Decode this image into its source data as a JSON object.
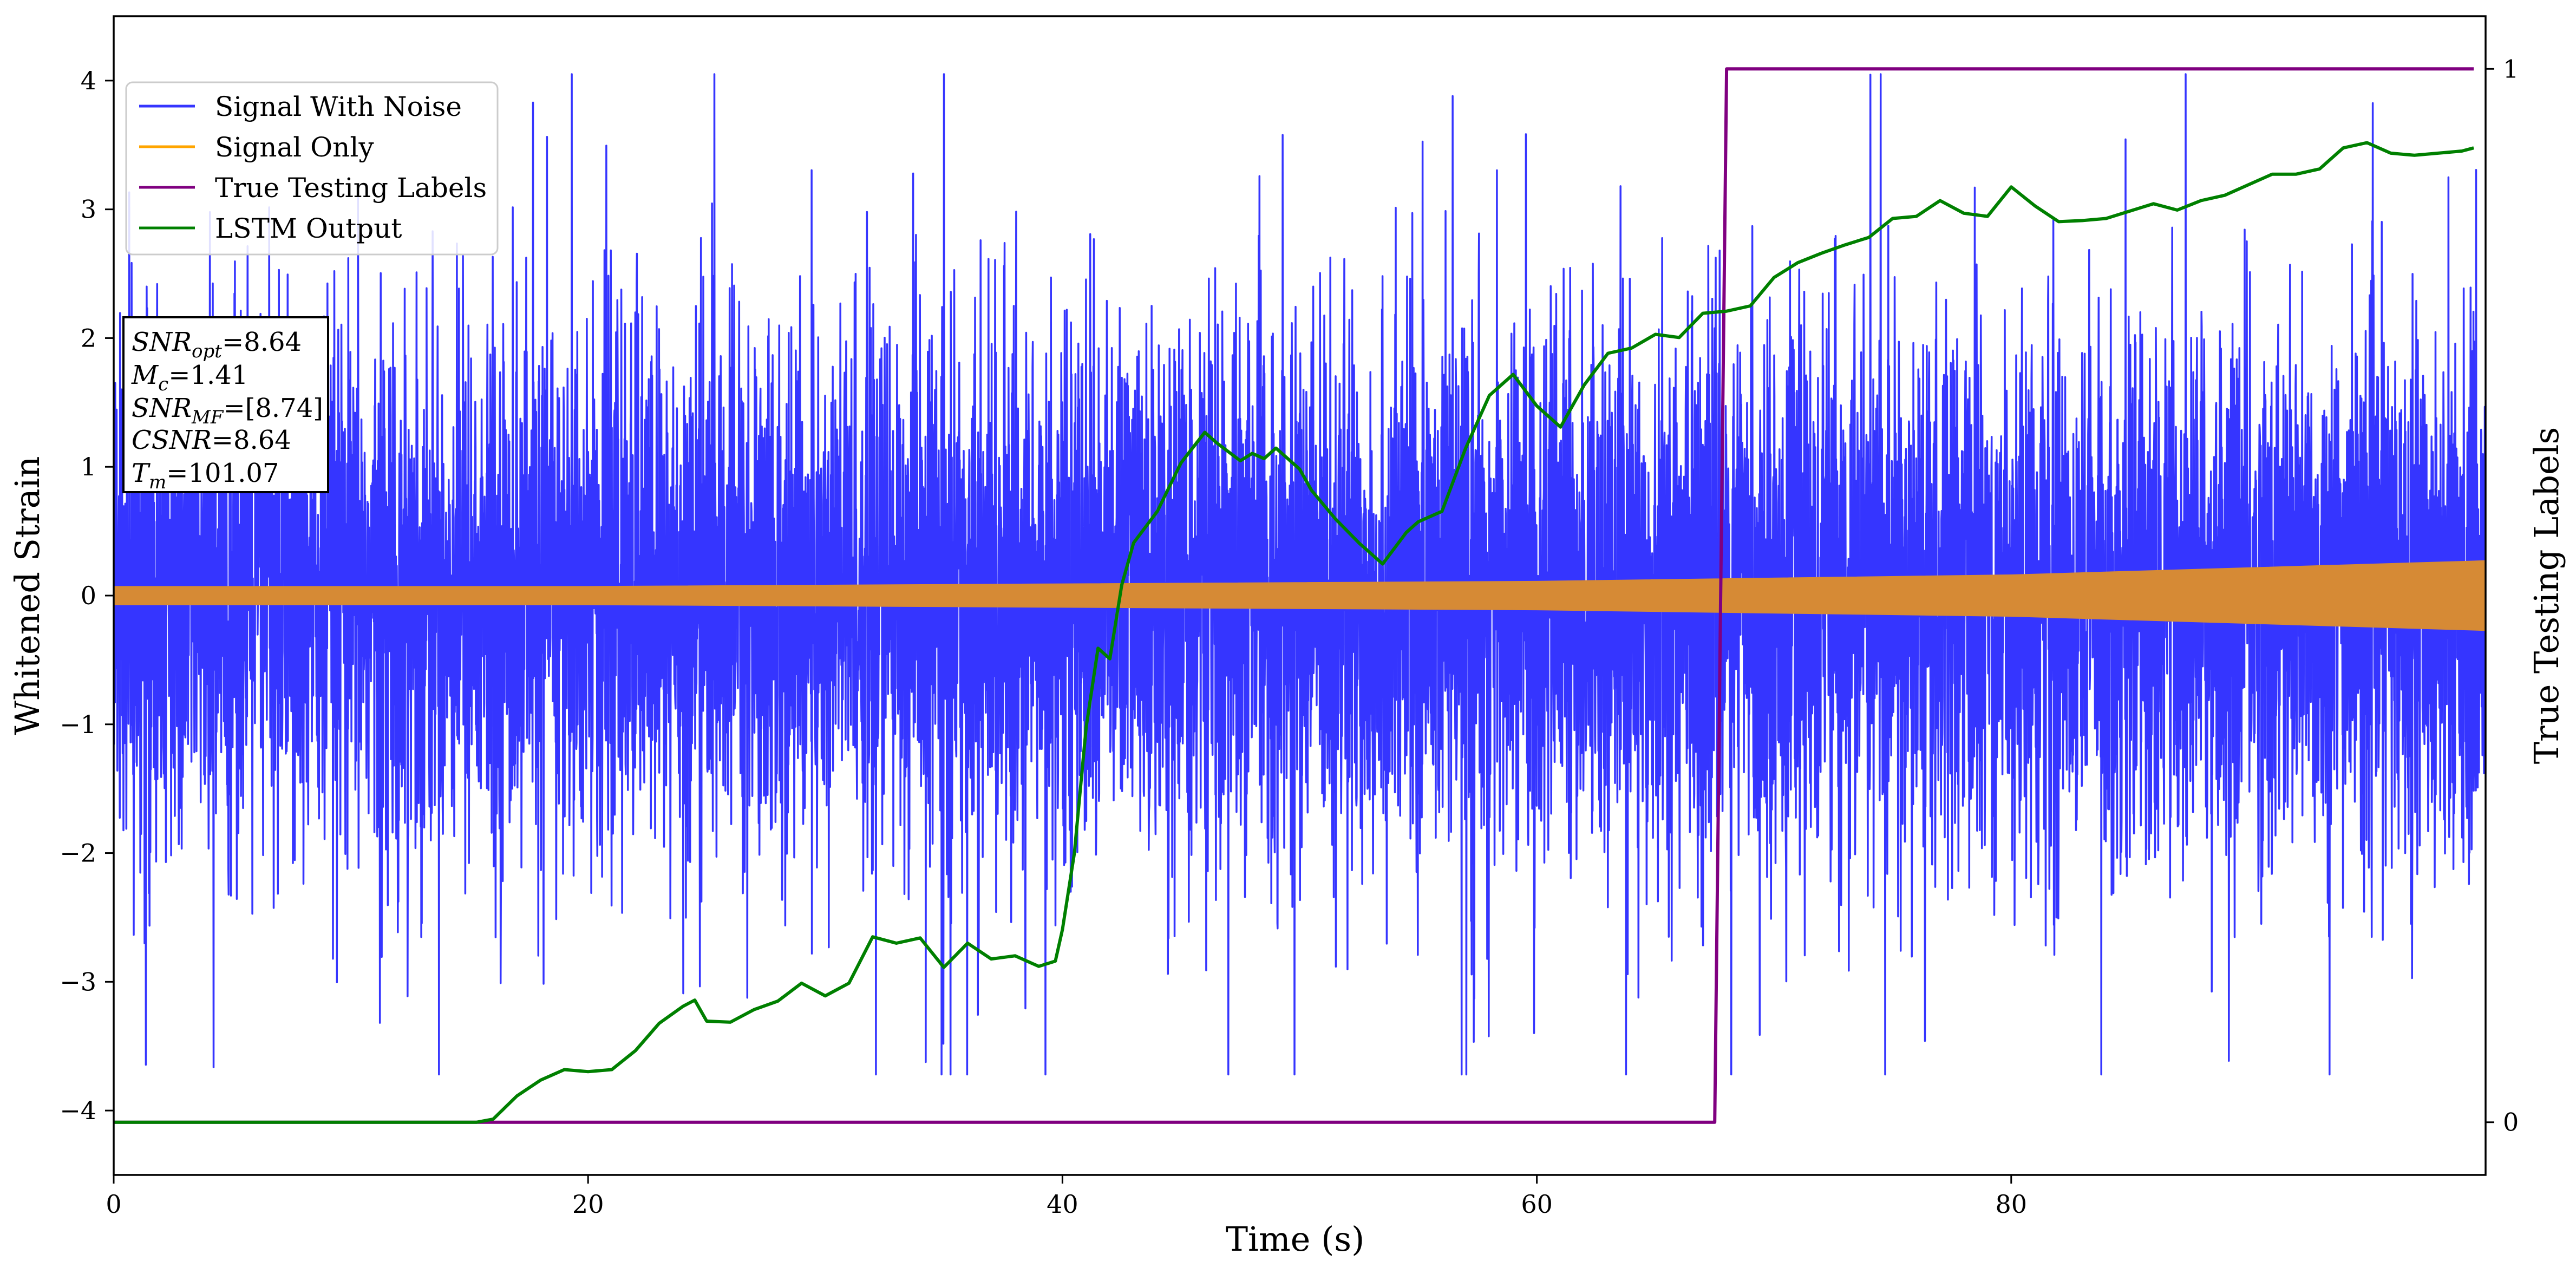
{
  "chart_data": {
    "type": "line",
    "xlabel": "Time (s)",
    "ylabel": "Whitened Strain",
    "y2label": "True Testing Labels",
    "xlim": [
      0,
      100
    ],
    "ylim": [
      -4.5,
      4.5
    ],
    "y2lim": [
      -0.05,
      1.05
    ],
    "xticks": [
      0,
      20,
      40,
      60,
      80
    ],
    "yticks": [
      -4,
      -3,
      -2,
      -1,
      0,
      1,
      2,
      3,
      4
    ],
    "y2ticks": [
      0,
      1
    ],
    "grid": false,
    "legend_position": "top-left",
    "legend": [
      "Signal With Noise",
      "Signal Only",
      "True Testing Labels",
      "LSTM Output"
    ],
    "colors": {
      "signal_with_noise": "#3535ff",
      "signal_only": "#d68a35",
      "signal_only_legend": "#ffa500",
      "true_labels": "#800080",
      "lstm_output": "#008000"
    },
    "annotation": {
      "snr_opt": "SNR",
      "snr_opt_sub": "opt",
      "snr_opt_val": "=8.64",
      "mc": "M",
      "mc_sub": "c",
      "mc_val": "=1.41",
      "snr_mf": "SNR",
      "snr_mf_sub": "MF",
      "snr_mf_val": "=[8.74]",
      "csnr": "CSNR",
      "csnr_val": "=8.64",
      "tm": "T",
      "tm_sub": "m",
      "tm_val": "=101.07"
    },
    "series": [
      {
        "name": "Signal With Noise",
        "kind": "noise",
        "baseline_amplitude": 1.0,
        "peak_max": 4.05,
        "peak_min": -3.72
      },
      {
        "name": "Signal Only",
        "kind": "envelope",
        "x": [
          0,
          20,
          40,
          60,
          80,
          100
        ],
        "upper": [
          0.07,
          0.07,
          0.09,
          0.11,
          0.16,
          0.27
        ],
        "lower": [
          -0.07,
          -0.07,
          -0.09,
          -0.11,
          -0.16,
          -0.27
        ]
      },
      {
        "name": "True Testing Labels",
        "axis": "right",
        "x": [
          0,
          67.5,
          68.0,
          99.5
        ],
        "y": [
          0,
          0,
          1,
          1
        ]
      },
      {
        "name": "LSTM Output",
        "axis": "right",
        "x": [
          0,
          15.3,
          16.0,
          17.0,
          18.0,
          19.0,
          20.0,
          21.0,
          22.0,
          23.0,
          24.0,
          24.5,
          25.0,
          26.0,
          27.0,
          28.0,
          29.0,
          30.0,
          31.0,
          32.0,
          33.0,
          34.0,
          35.0,
          36.0,
          37.0,
          38.0,
          39.0,
          39.7,
          40.0,
          40.5,
          41.0,
          41.5,
          42.0,
          42.5,
          43.0,
          44.0,
          45.0,
          46.0,
          46.5,
          47.5,
          48.0,
          48.5,
          49.0,
          50.0,
          50.5,
          51.5,
          52.5,
          53.5,
          54.5,
          55.0,
          56.0,
          57.0,
          58.0,
          59.0,
          60.0,
          61.0,
          62.0,
          63.0,
          64.0,
          65.0,
          66.0,
          67.0,
          68.0,
          69.0,
          70.0,
          71.0,
          72.0,
          73.0,
          74.0,
          75.0,
          76.0,
          77.0,
          78.0,
          79.0,
          80.0,
          81.0,
          82.0,
          83.0,
          84.0,
          85.0,
          86.0,
          87.0,
          88.0,
          89.0,
          90.0,
          91.0,
          92.0,
          93.0,
          94.0,
          95.0,
          96.0,
          97.0,
          98.0,
          99.0,
          99.5
        ],
        "y": [
          0,
          0,
          0.003,
          0.025,
          0.04,
          0.05,
          0.048,
          0.05,
          0.068,
          0.094,
          0.11,
          0.116,
          0.096,
          0.095,
          0.107,
          0.115,
          0.132,
          0.12,
          0.132,
          0.176,
          0.17,
          0.175,
          0.147,
          0.17,
          0.155,
          0.158,
          0.148,
          0.153,
          0.183,
          0.255,
          0.375,
          0.45,
          0.44,
          0.51,
          0.55,
          0.58,
          0.626,
          0.655,
          0.645,
          0.628,
          0.635,
          0.63,
          0.64,
          0.62,
          0.6,
          0.573,
          0.55,
          0.53,
          0.56,
          0.57,
          0.58,
          0.64,
          0.69,
          0.71,
          0.68,
          0.66,
          0.7,
          0.73,
          0.735,
          0.748,
          0.745,
          0.768,
          0.77,
          0.775,
          0.802,
          0.816,
          0.825,
          0.833,
          0.84,
          0.858,
          0.86,
          0.875,
          0.863,
          0.86,
          0.888,
          0.87,
          0.855,
          0.856,
          0.858,
          0.865,
          0.872,
          0.866,
          0.875,
          0.88,
          0.89,
          0.9,
          0.9,
          0.905,
          0.925,
          0.93,
          0.92,
          0.918,
          0.92,
          0.922,
          0.925
        ]
      }
    ]
  }
}
